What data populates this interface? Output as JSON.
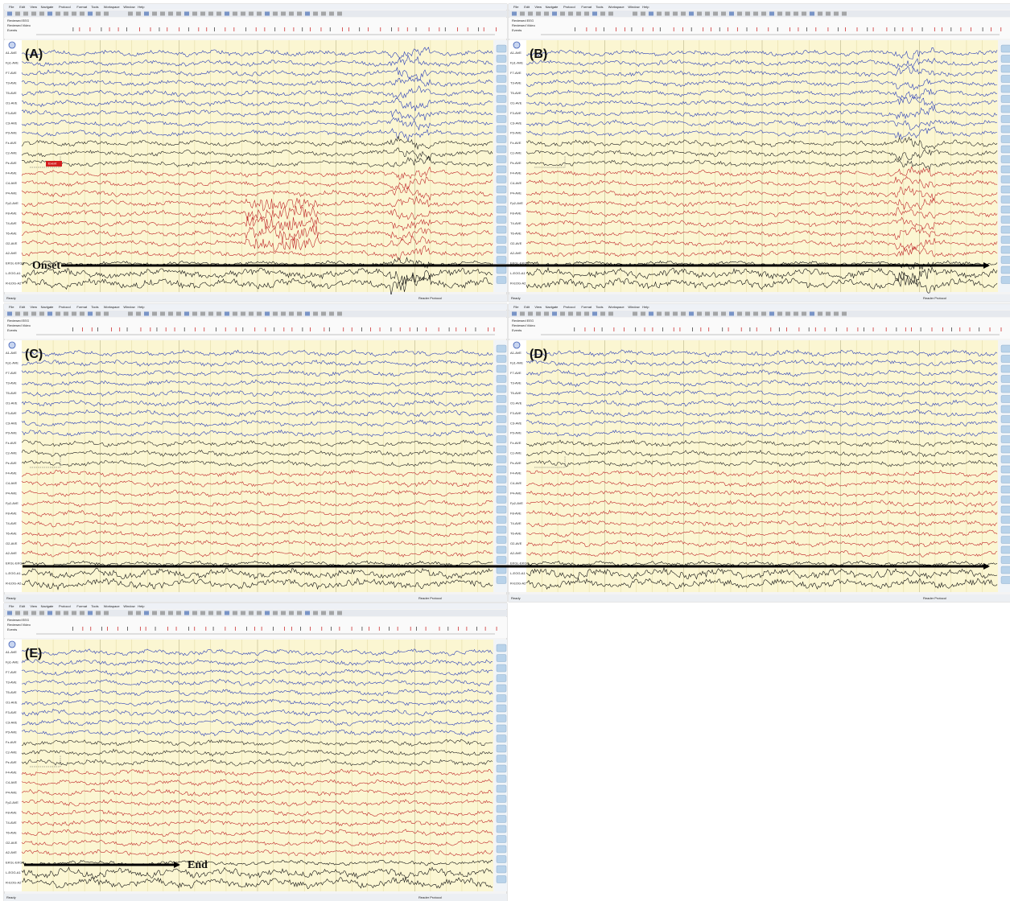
{
  "menu": [
    "File",
    "Edit",
    "View",
    "Navigate",
    "Protocol",
    "Format",
    "Tools",
    "Workspace",
    "Window",
    "Help"
  ],
  "timeline": [
    "Reviewed EEG",
    "Reviewed Video",
    "Events"
  ],
  "channels": [
    "A1-AVE",
    "Fp1-AVE",
    "F7-AVE",
    "T3-AVE",
    "T5-AVE",
    "O1-AVE",
    "F3-AVE",
    "C3-AVE",
    "P3-AVE",
    "Fz-AVE",
    "Cz-AVE",
    "Pz-AVE",
    "F4-AVE",
    "C4-AVE",
    "P4-AVE",
    "Fp2-AVE",
    "F8-AVE",
    "T4-AVE",
    "T6-AVE",
    "O2-AVE",
    "A2-AVE",
    "EKGL-EKGR",
    "L-EOG-A1",
    "R-EOG-A2"
  ],
  "panels": [
    {
      "label": "(A)"
    },
    {
      "label": "(B)"
    },
    {
      "label": "(C)"
    },
    {
      "label": "(D)"
    },
    {
      "label": "(E)"
    }
  ],
  "event": "Event",
  "annotations": {
    "onset": "Onset",
    "end": "End"
  },
  "status": {
    "ready": "Ready",
    "protocol": "Reader Protocol"
  }
}
